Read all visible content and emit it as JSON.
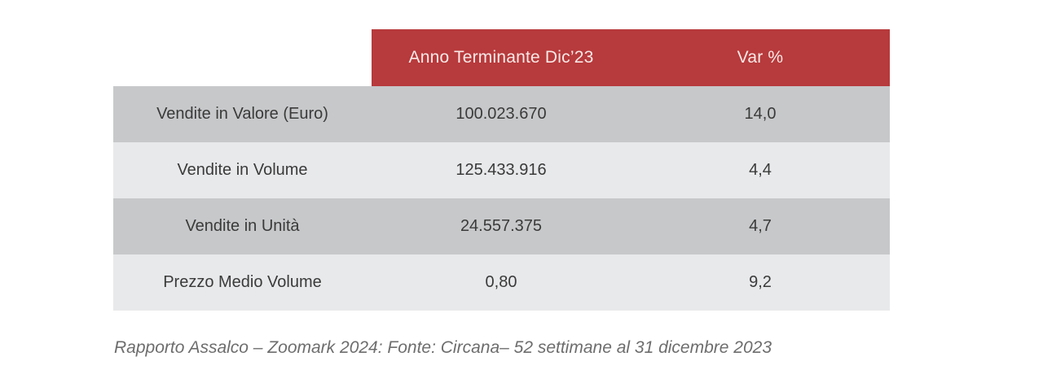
{
  "table": {
    "header": {
      "value_col": "Anno Terminante Dic’23",
      "var_col": "Var %"
    },
    "rows": [
      {
        "label": "Vendite in Valore (Euro)",
        "value": "100.023.670",
        "var": "14,0"
      },
      {
        "label": "Vendite in Volume",
        "value": "125.433.916",
        "var": "4,4"
      },
      {
        "label": "Vendite in Unità",
        "value": "24.557.375",
        "var": "4,7"
      },
      {
        "label": "Prezzo Medio Volume",
        "value": "0,80",
        "var": "9,2"
      }
    ]
  },
  "caption": "Rapporto Assalco – Zoomark 2024: Fonte: Circana– 52 settimane al 31 dicembre 2023",
  "colors": {
    "header_bg": "#b73a3c",
    "header_text": "#f9e9e7",
    "row_dark": "#c7c8ca",
    "row_light": "#e8e9eb",
    "body_text": "#3a3a3a",
    "caption_text": "#6d6d6d"
  },
  "chart_data": {
    "type": "table",
    "columns": [
      "",
      "Anno Terminante Dic’23",
      "Var %"
    ],
    "rows": [
      [
        "Vendite in Valore (Euro)",
        "100.023.670",
        "14,0"
      ],
      [
        "Vendite in Volume",
        "125.433.916",
        "4,4"
      ],
      [
        "Vendite in Unità",
        "24.557.375",
        "4,7"
      ],
      [
        "Prezzo Medio Volume",
        "0,80",
        "9,2"
      ]
    ],
    "caption": "Rapporto Assalco – Zoomark 2024: Fonte: Circana– 52 settimane al 31 dicembre 2023"
  }
}
